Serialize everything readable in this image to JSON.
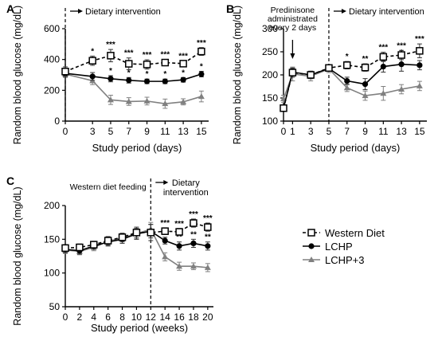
{
  "legend": {
    "items": [
      {
        "name": "Western Diet",
        "style": "dashed-open-square"
      },
      {
        "name": "LCHP",
        "style": "solid-filled-circle"
      },
      {
        "name": "LCHP+3",
        "style": "solid-gray-triangle"
      }
    ]
  },
  "colors": {
    "western": "#000000",
    "lchp": "#000000",
    "lchp3": "#808080"
  },
  "chart_data": [
    {
      "panel": "A",
      "type": "line",
      "xlabel": "Study period (days)",
      "ylabel": "Random blood glucose  (mg/dL)",
      "x": [
        0,
        3,
        5,
        7,
        9,
        11,
        13,
        15
      ],
      "xlim": [
        0,
        15.8
      ],
      "ylim": [
        0,
        600
      ],
      "yticks": [
        0,
        200,
        400,
        600
      ],
      "xticks": [
        0,
        3,
        5,
        7,
        9,
        11,
        13,
        15
      ],
      "annotations": [
        {
          "text": "Dietary intervention",
          "x": 0
        }
      ],
      "series": [
        {
          "key": "western",
          "values": [
            322,
            392,
            425,
            372,
            368,
            380,
            373,
            452
          ],
          "err": [
            30,
            30,
            40,
            38,
            30,
            20,
            18,
            25
          ],
          "stars": [
            "",
            "*",
            "***",
            "***",
            "***",
            "***",
            "***",
            "***"
          ]
        },
        {
          "key": "lchp",
          "values": [
            310,
            290,
            275,
            265,
            258,
            258,
            268,
            305
          ],
          "err": [
            25,
            25,
            20,
            18,
            15,
            15,
            15,
            18
          ],
          "stars": [
            "",
            "",
            "*",
            "*",
            "*",
            "*",
            "*",
            "*"
          ]
        },
        {
          "key": "lchp3",
          "values": [
            305,
            262,
            138,
            127,
            130,
            113,
            125,
            160
          ],
          "err": [
            20,
            25,
            30,
            25,
            25,
            30,
            20,
            35
          ],
          "stars": [
            "",
            "",
            "",
            "",
            "",
            "",
            "",
            ""
          ]
        }
      ]
    },
    {
      "panel": "B",
      "type": "line",
      "xlabel": "Study period (days)",
      "ylabel": "Random blood glucose  (mg/dL)",
      "x": [
        0,
        1,
        3,
        5,
        7,
        9,
        11,
        13,
        15
      ],
      "xlim": [
        0,
        15.8
      ],
      "ylim": [
        100,
        300
      ],
      "yticks": [
        100,
        150,
        200,
        250,
        300
      ],
      "xticks": [
        0,
        1,
        3,
        5,
        7,
        9,
        11,
        13,
        15
      ],
      "annotations": [
        {
          "text": "Predinisone administrated every 2 days",
          "x": 1
        },
        {
          "text": "Dietary intervention",
          "x": 5
        }
      ],
      "series": [
        {
          "key": "western",
          "values": [
            128,
            205,
            200,
            215,
            221,
            216,
            239,
            243,
            252
          ],
          "err": [
            5,
            10,
            8,
            6,
            8,
            8,
            10,
            10,
            15
          ],
          "stars": [
            "",
            "",
            "",
            "",
            "*",
            "**",
            "***",
            "***",
            "***"
          ]
        },
        {
          "key": "lchp",
          "values": [
            128,
            206,
            200,
            214,
            187,
            180,
            218,
            223,
            221
          ],
          "err": [
            5,
            8,
            8,
            6,
            8,
            12,
            12,
            15,
            10
          ],
          "stars": [
            "",
            "",
            "",
            "",
            "",
            "",
            "*",
            "*",
            ""
          ]
        },
        {
          "key": "lchp3",
          "values": [
            148,
            202,
            197,
            213,
            172,
            155,
            160,
            169,
            176
          ],
          "err": [
            8,
            15,
            10,
            8,
            8,
            10,
            15,
            10,
            10
          ],
          "stars": [
            "",
            "",
            "",
            "",
            "",
            "",
            "",
            "",
            ""
          ]
        }
      ]
    },
    {
      "panel": "C",
      "type": "line",
      "xlabel": "Study period (weeks)",
      "ylabel": "Random blood glucose  (mg/dL)",
      "x": [
        0,
        2,
        4,
        6,
        8,
        10,
        12,
        14,
        16,
        18,
        20
      ],
      "xlim": [
        0,
        20.8
      ],
      "ylim": [
        50,
        200
      ],
      "yticks": [
        50,
        100,
        150,
        200
      ],
      "xticks": [
        0,
        2,
        4,
        6,
        8,
        10,
        12,
        14,
        16,
        18,
        20
      ],
      "annotations": [
        {
          "text": "Western diet feeding",
          "x": 6
        },
        {
          "text": "Dietary intervention",
          "x": 12
        }
      ],
      "series": [
        {
          "key": "western",
          "values": [
            137,
            138,
            142,
            148,
            153,
            160,
            160,
            162,
            161,
            174,
            168
          ],
          "err": [
            5,
            5,
            5,
            6,
            6,
            8,
            12,
            5,
            5,
            6,
            6
          ],
          "stars": [
            "",
            "",
            "",
            "",
            "",
            "",
            "",
            "***",
            "***",
            "***",
            "***"
          ]
        },
        {
          "key": "lchp",
          "values": [
            135,
            133,
            140,
            146,
            150,
            158,
            162,
            148,
            140,
            144,
            140
          ],
          "err": [
            5,
            5,
            5,
            6,
            6,
            8,
            10,
            5,
            6,
            6,
            6
          ],
          "stars": [
            "",
            "",
            "",
            "",
            "",
            "",
            "",
            "**",
            "**",
            "**",
            "**"
          ]
        },
        {
          "key": "lchp3",
          "values": [
            134,
            132,
            138,
            147,
            152,
            158,
            165,
            124,
            110,
            110,
            108
          ],
          "err": [
            5,
            5,
            5,
            6,
            6,
            8,
            10,
            6,
            6,
            5,
            6
          ],
          "stars": [
            "",
            "",
            "",
            "",
            "",
            "",
            "",
            "",
            "",
            "",
            ""
          ]
        }
      ]
    }
  ]
}
